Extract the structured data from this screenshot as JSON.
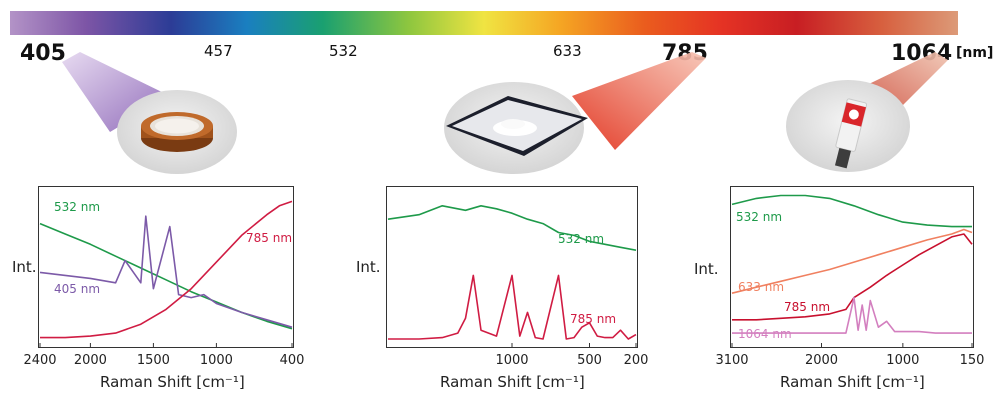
{
  "wavelength_bar": {
    "unit": "[nm]",
    "markers": [
      {
        "label": "405",
        "style": "big"
      },
      {
        "label": "457",
        "style": "small"
      },
      {
        "label": "532",
        "style": "small"
      },
      {
        "label": "633",
        "style": "small"
      },
      {
        "label": "785",
        "style": "big"
      },
      {
        "label": "1064",
        "style": "big"
      }
    ],
    "colors": [
      "#b393c7",
      "#7d55a6",
      "#2c3c96",
      "#1a7fc0",
      "#1aa070",
      "#8dc63f",
      "#f0e442",
      "#f5a623",
      "#ea5c1e",
      "#e53324",
      "#c81e23",
      "#d7603f",
      "#dc9a78"
    ]
  },
  "samples": [
    {
      "name": "tape",
      "icon": "kapton-tape-icon"
    },
    {
      "name": "powder",
      "icon": "white-powder-icon"
    },
    {
      "name": "tube",
      "icon": "paint-tube-icon"
    }
  ],
  "chart_data": [
    {
      "type": "line",
      "xlabel": "Raman Shift [cm⁻¹]",
      "ylabel": "Int.",
      "xlim": [
        2400,
        400
      ],
      "x_reversed": true,
      "xticks": [
        2400,
        2000,
        1500,
        1000,
        400
      ],
      "series": [
        {
          "name": "532 nm",
          "color": "#1e9a4a",
          "x": [
            2400,
            2200,
            2000,
            1800,
            1600,
            1400,
            1200,
            1000,
            800,
            600,
            400
          ],
          "y": [
            0.8,
            0.73,
            0.66,
            0.58,
            0.5,
            0.42,
            0.34,
            0.27,
            0.2,
            0.14,
            0.09
          ]
        },
        {
          "name": "405 nm",
          "color": "#7c5aa8",
          "x": [
            2400,
            2200,
            2000,
            1800,
            1725,
            1600,
            1560,
            1500,
            1370,
            1300,
            1200,
            1100,
            1000,
            800,
            600,
            400
          ],
          "y": [
            0.47,
            0.45,
            0.43,
            0.4,
            0.55,
            0.4,
            0.85,
            0.36,
            0.78,
            0.32,
            0.3,
            0.32,
            0.26,
            0.2,
            0.15,
            0.1
          ]
        },
        {
          "name": "785 nm",
          "color": "#d01c43",
          "x": [
            2400,
            2200,
            2000,
            1800,
            1600,
            1400,
            1200,
            1000,
            800,
            600,
            500,
            400
          ],
          "y": [
            0.03,
            0.03,
            0.04,
            0.06,
            0.12,
            0.22,
            0.36,
            0.54,
            0.72,
            0.86,
            0.92,
            0.95
          ]
        }
      ]
    },
    {
      "type": "line",
      "xlabel": "Raman Shift [cm⁻¹]",
      "ylabel": "Int.",
      "xlim": [
        1800,
        200
      ],
      "x_reversed": true,
      "xticks": [
        1000,
        500,
        200
      ],
      "series": [
        {
          "name": "532 nm",
          "color": "#1e9a4a",
          "x": [
            1800,
            1600,
            1450,
            1300,
            1200,
            1100,
            1000,
            900,
            800,
            700,
            600,
            500,
            400,
            300,
            200
          ],
          "y": [
            0.83,
            0.86,
            0.92,
            0.89,
            0.92,
            0.9,
            0.87,
            0.83,
            0.8,
            0.74,
            0.72,
            0.68,
            0.66,
            0.64,
            0.62
          ]
        },
        {
          "name": "785 nm",
          "color": "#d01c43",
          "x": [
            1800,
            1600,
            1450,
            1350,
            1300,
            1250,
            1200,
            1100,
            1000,
            950,
            900,
            850,
            800,
            700,
            650,
            600,
            550,
            500,
            450,
            400,
            350,
            300,
            250,
            200
          ],
          "y": [
            0.02,
            0.02,
            0.03,
            0.06,
            0.16,
            0.45,
            0.08,
            0.04,
            0.45,
            0.04,
            0.2,
            0.03,
            0.02,
            0.45,
            0.02,
            0.03,
            0.1,
            0.13,
            0.04,
            0.03,
            0.03,
            0.08,
            0.02,
            0.05
          ]
        }
      ]
    },
    {
      "type": "line",
      "xlabel": "Raman Shift [cm⁻¹]",
      "ylabel": "Int.",
      "xlim": [
        3100,
        150
      ],
      "x_reversed": true,
      "xticks": [
        3100,
        2000,
        1000,
        150
      ],
      "series": [
        {
          "name": "532 nm",
          "color": "#1e9a4a",
          "x": [
            3100,
            2800,
            2500,
            2200,
            1900,
            1600,
            1300,
            1000,
            700,
            400,
            150
          ],
          "y": [
            0.93,
            0.97,
            0.99,
            0.99,
            0.97,
            0.92,
            0.86,
            0.81,
            0.79,
            0.78,
            0.78
          ]
        },
        {
          "name": "633 nm",
          "color": "#f08060",
          "x": [
            3100,
            2800,
            2500,
            2200,
            1900,
            1600,
            1300,
            1000,
            700,
            400,
            250,
            150
          ],
          "y": [
            0.33,
            0.37,
            0.41,
            0.45,
            0.49,
            0.54,
            0.59,
            0.64,
            0.69,
            0.73,
            0.76,
            0.74
          ]
        },
        {
          "name": "785 nm",
          "color": "#c8102e",
          "x": [
            3100,
            2800,
            2500,
            2200,
            1900,
            1700,
            1600,
            1400,
            1200,
            1000,
            800,
            600,
            400,
            250,
            150
          ],
          "y": [
            0.15,
            0.15,
            0.16,
            0.17,
            0.19,
            0.22,
            0.3,
            0.37,
            0.45,
            0.52,
            0.59,
            0.65,
            0.71,
            0.73,
            0.66
          ]
        },
        {
          "name": "1064 nm",
          "color": "#d37fbf",
          "x": [
            3100,
            2800,
            2500,
            2200,
            1900,
            1700,
            1600,
            1550,
            1500,
            1450,
            1400,
            1300,
            1200,
            1100,
            1000,
            800,
            600,
            400,
            150
          ],
          "y": [
            0.06,
            0.06,
            0.06,
            0.06,
            0.06,
            0.06,
            0.3,
            0.08,
            0.25,
            0.08,
            0.28,
            0.1,
            0.14,
            0.07,
            0.07,
            0.07,
            0.06,
            0.06,
            0.06
          ]
        }
      ]
    }
  ]
}
